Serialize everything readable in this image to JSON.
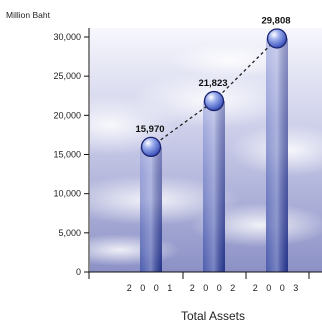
{
  "chart_data": {
    "type": "bar",
    "title": "Total Assets",
    "unit_label": "Million Baht",
    "categories": [
      "2 0 0 1",
      "2 0 0 2",
      "2 0 0 3"
    ],
    "values": [
      15970,
      21823,
      29808
    ],
    "value_labels": [
      "15,970",
      "21,823",
      "29,808"
    ],
    "yticks": [
      0,
      5000,
      10000,
      15000,
      20000,
      25000,
      30000
    ],
    "ytick_labels": [
      "0",
      "5,000",
      "10,000",
      "15,000",
      "20,000",
      "25,000",
      "30,000"
    ],
    "ylim": [
      0,
      30000
    ],
    "grid": false,
    "background": "sky-clouds",
    "colors": {
      "bar_top": "#7a86d2",
      "bar_bottom": "#2a3d9e",
      "marker": "#3b55c8",
      "connector": "#222222",
      "sky_top": "#f2f2fb",
      "sky_bottom": "#8e93c4"
    }
  }
}
